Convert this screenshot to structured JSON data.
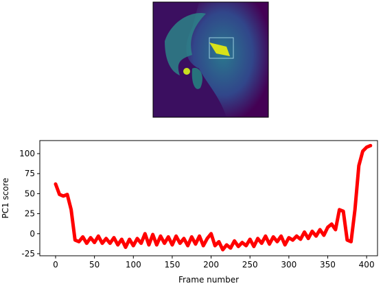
{
  "chart_data": {
    "type": "line",
    "xlabel": "Frame number",
    "ylabel": "PC1 score",
    "x": [
      0,
      5,
      10,
      15,
      20,
      25,
      30,
      35,
      40,
      45,
      50,
      55,
      60,
      65,
      70,
      75,
      80,
      85,
      90,
      95,
      100,
      105,
      110,
      115,
      120,
      125,
      130,
      135,
      140,
      145,
      150,
      155,
      160,
      165,
      170,
      175,
      180,
      185,
      190,
      195,
      200,
      205,
      210,
      215,
      220,
      225,
      230,
      235,
      240,
      245,
      250,
      255,
      260,
      265,
      270,
      275,
      280,
      285,
      290,
      295,
      300,
      305,
      310,
      315,
      320,
      325,
      330,
      335,
      340,
      345,
      350,
      355,
      360,
      365,
      370,
      375,
      380,
      385,
      390,
      395,
      400,
      405
    ],
    "series": [
      {
        "name": "PC1",
        "color": "#ff0000",
        "values": [
          62,
          49,
          47,
          49,
          30,
          -8,
          -10,
          -4,
          -12,
          -5,
          -11,
          -3,
          -12,
          -6,
          -12,
          -5,
          -14,
          -7,
          -17,
          -7,
          -15,
          -6,
          -12,
          0,
          -14,
          -1,
          -14,
          -3,
          -12,
          -4,
          -14,
          -3,
          -12,
          -6,
          -15,
          -4,
          -13,
          -3,
          -15,
          -6,
          0,
          -15,
          -10,
          -20,
          -14,
          -18,
          -9,
          -16,
          -11,
          -15,
          -7,
          -16,
          -6,
          -12,
          -3,
          -13,
          -4,
          -10,
          -3,
          -14,
          -5,
          -8,
          -3,
          -7,
          2,
          -6,
          3,
          -3,
          5,
          -2,
          8,
          12,
          5,
          30,
          28,
          -8,
          -10,
          30,
          85,
          103,
          108,
          110
        ]
      }
    ],
    "xlim": [
      -20.3,
      414
    ],
    "ylim": [
      -27.6,
      116.3
    ],
    "xticks": [
      0,
      50,
      100,
      150,
      200,
      250,
      300,
      350,
      400
    ],
    "yticks": [
      -25,
      0,
      25,
      50,
      75,
      100
    ]
  }
}
